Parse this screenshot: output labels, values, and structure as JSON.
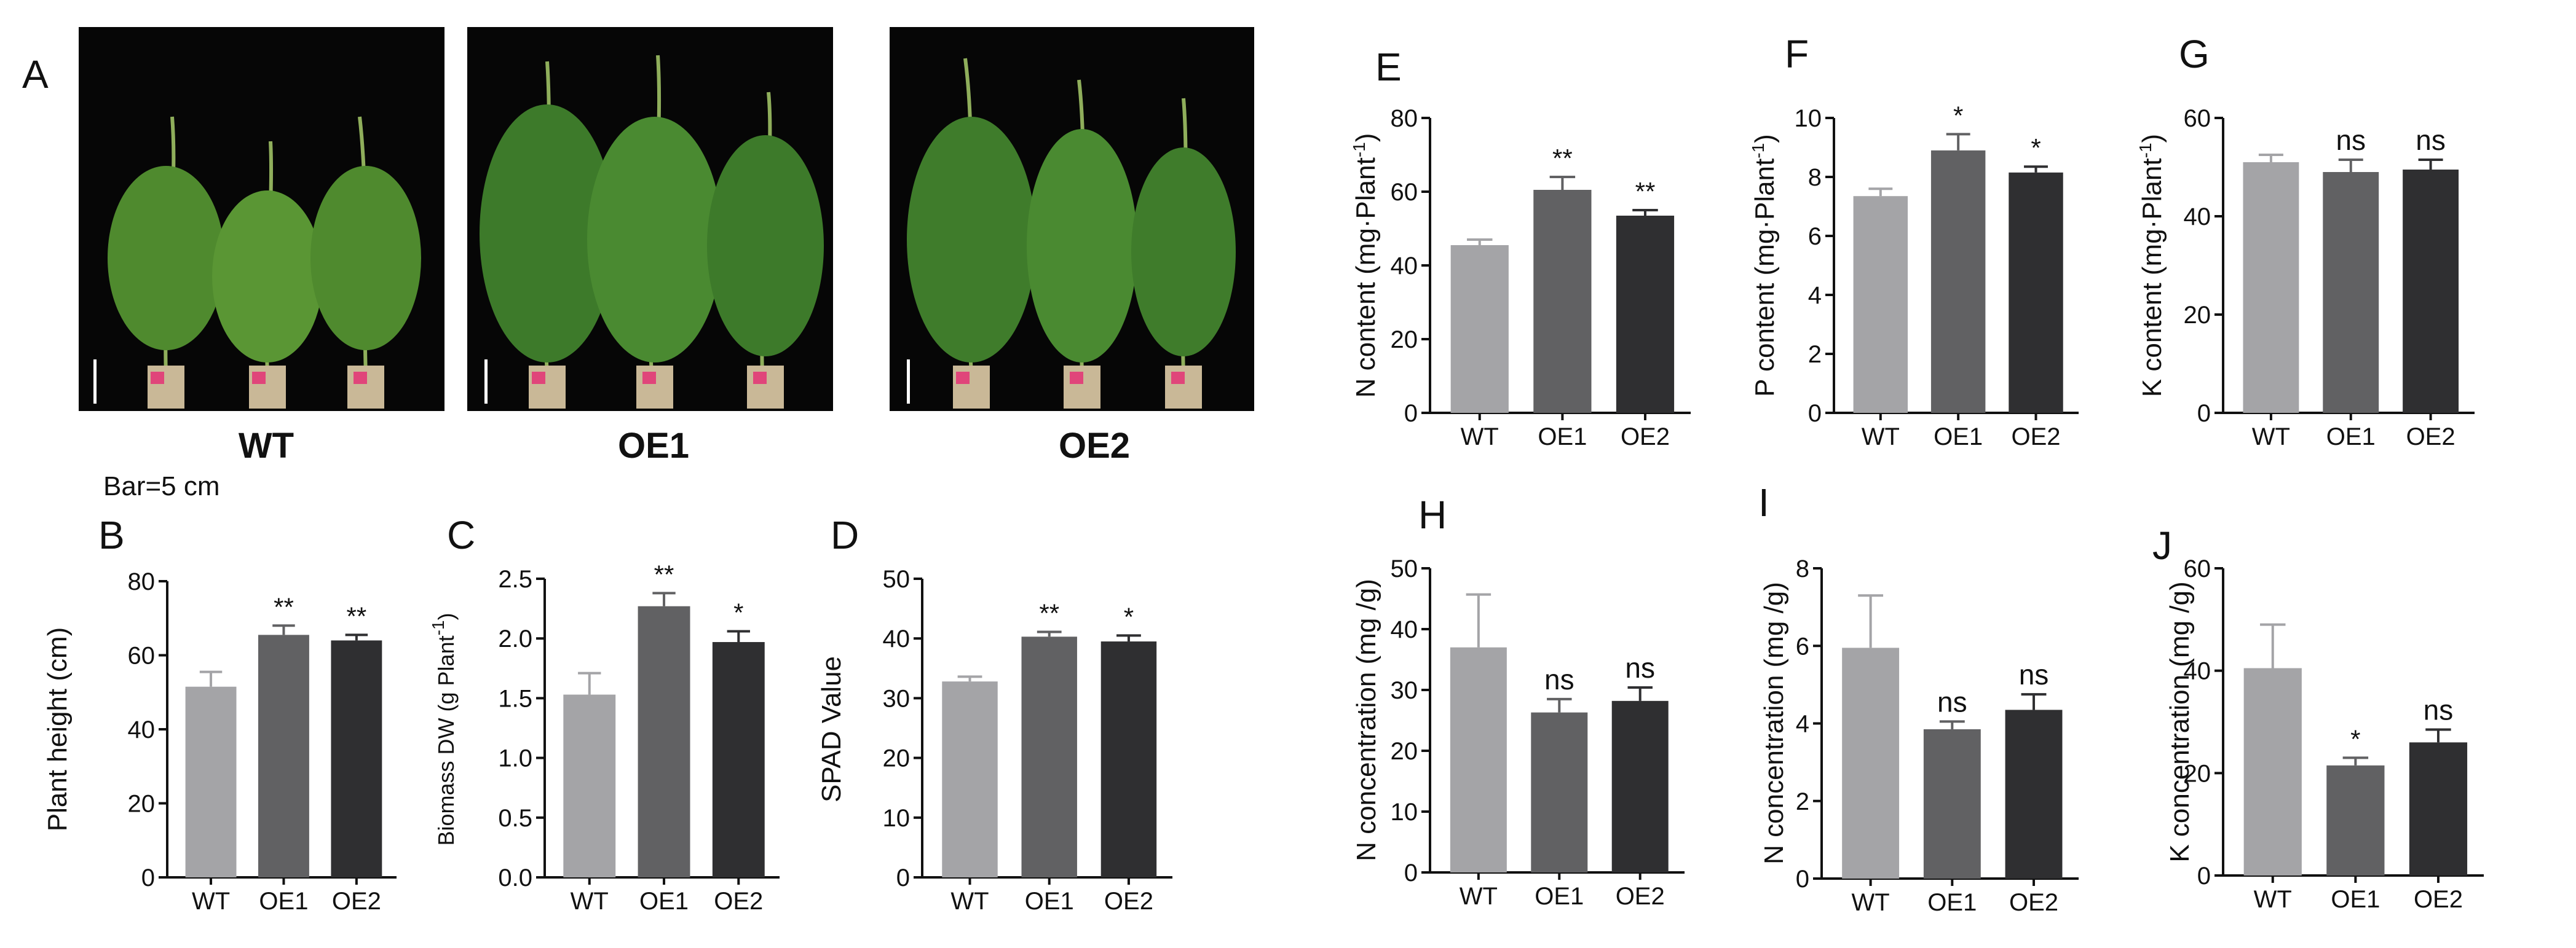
{
  "panel_a": {
    "letter": "A",
    "photos": [
      {
        "label": "WT"
      },
      {
        "label": "OE1"
      },
      {
        "label": "OE2"
      }
    ],
    "scale_bar_label": "Bar=5 cm"
  },
  "colors": {
    "WT": "#a4a4a7",
    "OE1": "#616163",
    "OE2": "#2f2f31",
    "axis": "#111111",
    "photo_bg": "#060606"
  },
  "chart_data": [
    {
      "id": "B",
      "type": "bar",
      "letter": "B",
      "ylabel": "Plant height (cm)",
      "categories": [
        "WT",
        "OE1",
        "OE2"
      ],
      "values": [
        51.5,
        65.5,
        64
      ],
      "errors": [
        4,
        2.5,
        1.5
      ],
      "significance": [
        "",
        "**",
        "**"
      ],
      "ylim": [
        0,
        80
      ],
      "yticks": [
        0,
        20,
        40,
        60,
        80
      ],
      "grid": false,
      "legend": "none"
    },
    {
      "id": "C",
      "type": "bar",
      "letter": "C",
      "ylabel": "Biomass DW (g Plant",
      "ylabel_sup": "-1",
      "ylabel_end": ")",
      "categories": [
        "WT",
        "OE1",
        "OE2"
      ],
      "values": [
        1.53,
        2.27,
        1.97
      ],
      "errors": [
        0.18,
        0.11,
        0.09
      ],
      "significance": [
        "",
        "**",
        "*"
      ],
      "ylim": [
        0,
        2.5
      ],
      "yticks": [
        "0.0",
        "0.5",
        "1.0",
        "1.5",
        "2.0",
        "2.5"
      ],
      "grid": false,
      "legend": "none"
    },
    {
      "id": "D",
      "type": "bar",
      "letter": "D",
      "ylabel": "SPAD Value",
      "categories": [
        "WT",
        "OE1",
        "OE2"
      ],
      "values": [
        32.8,
        40.3,
        39.5
      ],
      "errors": [
        0.8,
        0.8,
        1
      ],
      "significance": [
        "",
        "**",
        "*"
      ],
      "ylim": [
        0,
        50
      ],
      "yticks": [
        0,
        10,
        20,
        30,
        40,
        50
      ],
      "grid": false,
      "legend": "none"
    },
    {
      "id": "E",
      "type": "bar",
      "letter": "E",
      "ylabel": "N content (mg·Plant",
      "ylabel_sup": "-1",
      "ylabel_end": ")",
      "categories": [
        "WT",
        "OE1",
        "OE2"
      ],
      "values": [
        45.5,
        60.5,
        53.5
      ],
      "errors": [
        1.5,
        3.5,
        1.5
      ],
      "significance": [
        "",
        "**",
        "**"
      ],
      "ylim": [
        0,
        80
      ],
      "yticks": [
        0,
        20,
        40,
        60,
        80
      ],
      "grid": false,
      "legend": "none"
    },
    {
      "id": "F",
      "type": "bar",
      "letter": "F",
      "ylabel": "P content (mg·Plant",
      "ylabel_sup": "-1",
      "ylabel_end": ")",
      "categories": [
        "WT",
        "OE1",
        "OE2"
      ],
      "values": [
        7.35,
        8.9,
        8.15
      ],
      "errors": [
        0.25,
        0.55,
        0.2
      ],
      "significance": [
        "",
        "*",
        "*"
      ],
      "ylim": [
        0,
        10
      ],
      "yticks": [
        0,
        2,
        4,
        6,
        8,
        10
      ],
      "grid": false,
      "legend": "none"
    },
    {
      "id": "G",
      "type": "bar",
      "letter": "G",
      "ylabel": "K content (mg·Plant",
      "ylabel_sup": "-1",
      "ylabel_end": ")",
      "categories": [
        "WT",
        "OE1",
        "OE2"
      ],
      "values": [
        51,
        49,
        49.5
      ],
      "errors": [
        1.5,
        2.5,
        2
      ],
      "significance": [
        "",
        "ns",
        "ns"
      ],
      "ylim": [
        0,
        60
      ],
      "yticks": [
        0,
        20,
        40,
        60
      ],
      "grid": false,
      "legend": "none"
    },
    {
      "id": "H",
      "type": "bar",
      "letter": "H",
      "ylabel": "N concentration (mg /g)",
      "categories": [
        "WT",
        "OE1",
        "OE2"
      ],
      "values": [
        37,
        26.3,
        28.2
      ],
      "errors": [
        8.7,
        2.2,
        2.2
      ],
      "significance": [
        "",
        "ns",
        "ns"
      ],
      "ylim": [
        0,
        50
      ],
      "yticks": [
        0,
        10,
        20,
        30,
        40,
        50
      ],
      "grid": false,
      "legend": "none"
    },
    {
      "id": "I",
      "type": "bar",
      "letter": "I",
      "ylabel": "N concentration (mg /g)",
      "categories": [
        "WT",
        "OE1",
        "OE2"
      ],
      "values": [
        5.95,
        3.85,
        4.35
      ],
      "errors": [
        1.35,
        0.2,
        0.4
      ],
      "significance": [
        "",
        "ns",
        "ns"
      ],
      "ylim": [
        0,
        8
      ],
      "yticks": [
        0,
        2,
        4,
        6,
        8
      ],
      "grid": false,
      "legend": "none"
    },
    {
      "id": "J",
      "type": "bar",
      "letter": "J",
      "ylabel": "K concentration (mg /g)",
      "categories": [
        "WT",
        "OE1",
        "OE2"
      ],
      "values": [
        40.5,
        21.5,
        26
      ],
      "errors": [
        8.5,
        1.5,
        2.5
      ],
      "significance": [
        "",
        "*",
        "ns"
      ],
      "ylim": [
        0,
        60
      ],
      "yticks": [
        0,
        20,
        40,
        60
      ],
      "grid": false,
      "legend": "none"
    }
  ]
}
